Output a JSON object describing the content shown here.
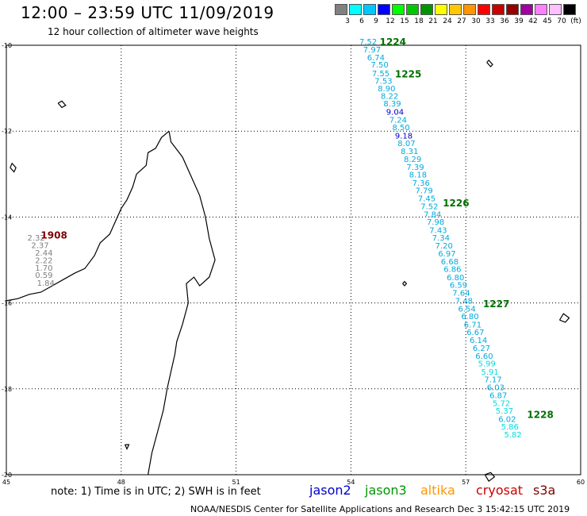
{
  "header": {
    "title": "12:00 – 23:59 UTC 11/09/2019",
    "subtitle": "12 hour collection of altimeter wave heights"
  },
  "legend": {
    "unit": "(ft)",
    "colors": [
      "#808080",
      "#00ffff",
      "#00c8ff",
      "#0000ff",
      "#00ff00",
      "#00c800",
      "#009600",
      "#ffff00",
      "#ffc800",
      "#ff9600",
      "#ff0000",
      "#c80000",
      "#960000",
      "#a000a0",
      "#ff80ff",
      "#ffc0ff",
      "#000000"
    ],
    "labels": [
      "3",
      "6",
      "9",
      "12",
      "15",
      "18",
      "21",
      "24",
      "27",
      "30",
      "33",
      "36",
      "39",
      "42",
      "45",
      "70"
    ]
  },
  "map": {
    "lon_range": [
      45,
      60
    ],
    "lat_range": [
      -20,
      -10
    ],
    "lon_ticks": [
      "45",
      "48",
      "51",
      "54",
      "57",
      "60"
    ],
    "lat_ticks": [
      "-10",
      "-12",
      "-14",
      "-16",
      "-18",
      "-20"
    ],
    "grid": true
  },
  "tracks": [
    {
      "id": "1908",
      "label_color": "#800000",
      "label_lon": 45.9,
      "label_lat": -14.5,
      "points": [
        {
          "lon": 45.55,
          "lat": -14.55,
          "value": "2.32",
          "color": "#808080"
        },
        {
          "lon": 45.65,
          "lat": -14.72,
          "value": "2.37",
          "color": "#808080"
        },
        {
          "lon": 45.75,
          "lat": -14.9,
          "value": "2.44",
          "color": "#808080"
        },
        {
          "lon": 45.75,
          "lat": -15.07,
          "value": "2.22",
          "color": "#808080"
        },
        {
          "lon": 45.75,
          "lat": -15.25,
          "value": "1.70",
          "color": "#808080"
        },
        {
          "lon": 45.75,
          "lat": -15.42,
          "value": "0.59",
          "color": "#808080"
        },
        {
          "lon": 45.8,
          "lat": -15.6,
          "value": "1.84",
          "color": "#808080"
        }
      ]
    },
    {
      "id": "1224",
      "label_color": "#007000",
      "label_lon": 54.75,
      "label_lat": -10.0,
      "points": [
        {
          "lon": 54.22,
          "lat": -9.98,
          "value": "7.52",
          "color": "#00aadd"
        },
        {
          "lon": 54.32,
          "lat": -10.17,
          "value": "7.97",
          "color": "#00aadd"
        },
        {
          "lon": 54.42,
          "lat": -10.35,
          "value": "6.74",
          "color": "#00aadd"
        },
        {
          "lon": 54.52,
          "lat": -10.52,
          "value": "7.50",
          "color": "#00aadd"
        }
      ]
    },
    {
      "id": "1225",
      "label_color": "#007000",
      "label_lon": 55.15,
      "label_lat": -10.75,
      "points": [
        {
          "lon": 54.55,
          "lat": -10.72,
          "value": "7.55",
          "color": "#00aadd"
        },
        {
          "lon": 54.62,
          "lat": -10.9,
          "value": "7.53",
          "color": "#00aadd"
        },
        {
          "lon": 54.7,
          "lat": -11.07,
          "value": "8.90",
          "color": "#00aadd"
        },
        {
          "lon": 54.78,
          "lat": -11.25,
          "value": "8.22",
          "color": "#00aadd"
        },
        {
          "lon": 54.85,
          "lat": -11.42,
          "value": "8.39",
          "color": "#00aadd"
        },
        {
          "lon": 54.92,
          "lat": -11.62,
          "value": "9.04",
          "color": "#0000cc"
        },
        {
          "lon": 55.0,
          "lat": -11.8,
          "value": "7.24",
          "color": "#00aadd"
        },
        {
          "lon": 55.08,
          "lat": -11.98,
          "value": "8.50",
          "color": "#00aadd"
        },
        {
          "lon": 55.15,
          "lat": -12.17,
          "value": "9.18",
          "color": "#0000cc"
        },
        {
          "lon": 55.22,
          "lat": -12.35,
          "value": "8.07",
          "color": "#00aadd"
        },
        {
          "lon": 55.3,
          "lat": -12.53,
          "value": "8.31",
          "color": "#00aadd"
        },
        {
          "lon": 55.38,
          "lat": -12.72,
          "value": "8.29",
          "color": "#00aadd"
        },
        {
          "lon": 55.45,
          "lat": -12.9,
          "value": "7.39",
          "color": "#00aadd"
        },
        {
          "lon": 55.52,
          "lat": -13.08,
          "value": "8.18",
          "color": "#00aadd"
        },
        {
          "lon": 55.6,
          "lat": -13.27,
          "value": "7.36",
          "color": "#00aadd"
        }
      ]
    },
    {
      "id": "1226",
      "label_color": "#007000",
      "label_lon": 56.4,
      "label_lat": -13.75,
      "points": [
        {
          "lon": 55.68,
          "lat": -13.45,
          "value": "7.79",
          "color": "#00aadd"
        },
        {
          "lon": 55.75,
          "lat": -13.63,
          "value": "7.45",
          "color": "#00aadd"
        },
        {
          "lon": 55.82,
          "lat": -13.82,
          "value": "7.52",
          "color": "#00aadd"
        },
        {
          "lon": 55.9,
          "lat": -14.0,
          "value": "7.84",
          "color": "#00aadd"
        },
        {
          "lon": 55.98,
          "lat": -14.18,
          "value": "7.98",
          "color": "#00aadd"
        },
        {
          "lon": 56.05,
          "lat": -14.37,
          "value": "7.43",
          "color": "#00aadd"
        },
        {
          "lon": 56.12,
          "lat": -14.55,
          "value": "7.34",
          "color": "#00aadd"
        },
        {
          "lon": 56.2,
          "lat": -14.73,
          "value": "7.20",
          "color": "#00aadd"
        },
        {
          "lon": 56.28,
          "lat": -14.92,
          "value": "6.97",
          "color": "#00aadd"
        },
        {
          "lon": 56.35,
          "lat": -15.1,
          "value": "6.68",
          "color": "#00aadd"
        },
        {
          "lon": 56.42,
          "lat": -15.28,
          "value": "6.86",
          "color": "#00aadd"
        },
        {
          "lon": 56.5,
          "lat": -15.47,
          "value": "6.80",
          "color": "#00aadd"
        },
        {
          "lon": 56.58,
          "lat": -15.65,
          "value": "6.59",
          "color": "#00aadd"
        },
        {
          "lon": 56.65,
          "lat": -15.83,
          "value": "7.64",
          "color": "#00aadd"
        },
        {
          "lon": 56.72,
          "lat": -16.02,
          "value": "7.48",
          "color": "#00aadd"
        }
      ]
    },
    {
      "id": "1227",
      "label_color": "#007000",
      "label_lon": 57.45,
      "label_lat": -16.1,
      "points": [
        {
          "lon": 56.8,
          "lat": -16.2,
          "value": "6.54",
          "color": "#00aadd"
        },
        {
          "lon": 56.88,
          "lat": -16.38,
          "value": "6.80",
          "color": "#00aadd"
        },
        {
          "lon": 56.95,
          "lat": -16.57,
          "value": "6.71",
          "color": "#00aadd"
        },
        {
          "lon": 57.02,
          "lat": -16.75,
          "value": "6.67",
          "color": "#00aadd"
        },
        {
          "lon": 57.1,
          "lat": -16.93,
          "value": "6.14",
          "color": "#00aadd"
        },
        {
          "lon": 57.18,
          "lat": -17.12,
          "value": "6.27",
          "color": "#00aadd"
        },
        {
          "lon": 57.25,
          "lat": -17.3,
          "value": "6.60",
          "color": "#00aadd"
        },
        {
          "lon": 57.32,
          "lat": -17.48,
          "value": "5.99",
          "color": "#00dddd"
        },
        {
          "lon": 57.4,
          "lat": -17.67,
          "value": "5.91",
          "color": "#00dddd"
        },
        {
          "lon": 57.48,
          "lat": -17.85,
          "value": "7.17",
          "color": "#00aadd"
        },
        {
          "lon": 57.55,
          "lat": -18.03,
          "value": "6.03",
          "color": "#00aadd"
        },
        {
          "lon": 57.62,
          "lat": -18.22,
          "value": "6.87",
          "color": "#00aadd"
        },
        {
          "lon": 57.7,
          "lat": -18.4,
          "value": "5.72",
          "color": "#00dddd"
        },
        {
          "lon": 57.78,
          "lat": -18.58,
          "value": "5.37",
          "color": "#00dddd"
        },
        {
          "lon": 57.85,
          "lat": -18.77,
          "value": "6.02",
          "color": "#00aadd"
        }
      ]
    },
    {
      "id": "1228",
      "label_color": "#007000",
      "label_lon": 58.6,
      "label_lat": -18.68,
      "points": [
        {
          "lon": 57.92,
          "lat": -18.95,
          "value": "5.86",
          "color": "#00dddd"
        },
        {
          "lon": 58.0,
          "lat": -19.13,
          "value": "5.82",
          "color": "#00dddd"
        }
      ]
    }
  ],
  "footer": {
    "note": "note:  1) Time is in UTC;  2) SWH is in feet",
    "satellites": [
      {
        "name": "jason2",
        "color": "#0000cc"
      },
      {
        "name": "jason3",
        "color": "#009600"
      },
      {
        "name": "altika",
        "color": "#ff9600"
      },
      {
        "name": "cryosat",
        "color": "#cc0000"
      },
      {
        "name": "s3a",
        "color": "#800000"
      }
    ],
    "credit": "NOAA/NESDIS Center for Satellite Applications and Research    Dec  3 15:42:15 UTC 2019"
  }
}
